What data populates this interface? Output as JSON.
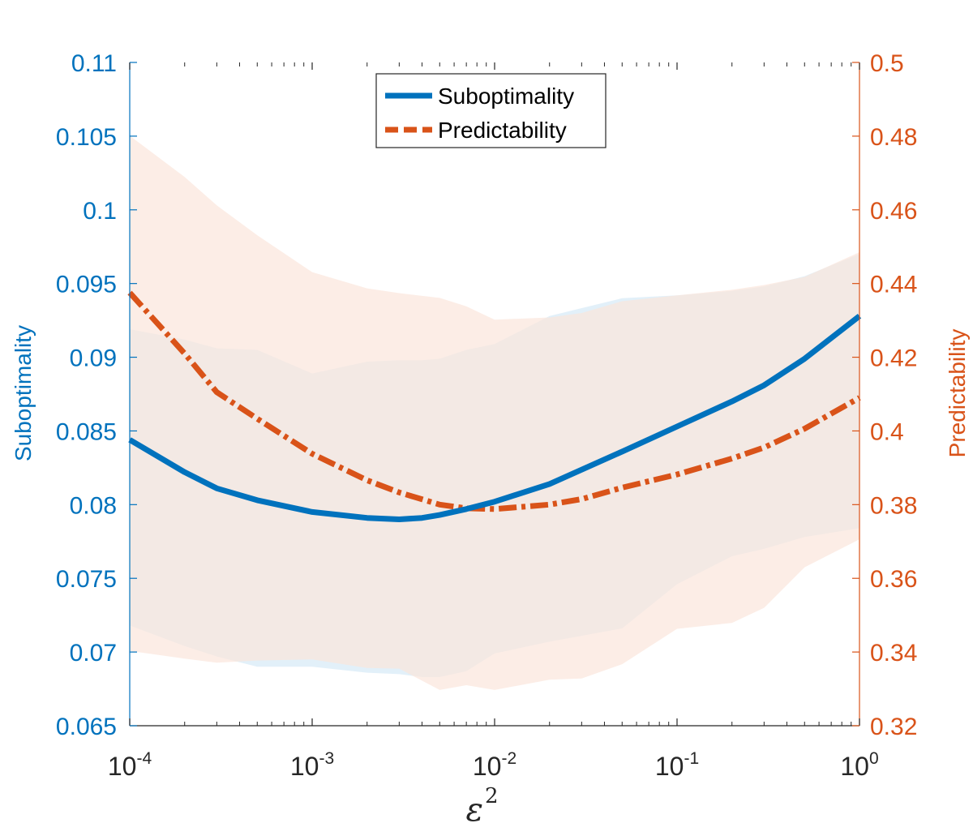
{
  "chart_data": {
    "type": "line",
    "title": "",
    "xlabel": "ε",
    "xlabel_superscript": "2",
    "xscale": "log",
    "xlim": [
      0.0001,
      1
    ],
    "x_ticks": [
      {
        "value": 0.0001,
        "base": "10",
        "exp": "-4"
      },
      {
        "value": 0.001,
        "base": "10",
        "exp": "-3"
      },
      {
        "value": 0.01,
        "base": "10",
        "exp": "-2"
      },
      {
        "value": 0.1,
        "base": "10",
        "exp": "-1"
      },
      {
        "value": 1,
        "base": "10",
        "exp": "0"
      }
    ],
    "y_left": {
      "label": "Suboptimality",
      "color": "#0072BD",
      "lim": [
        0.065,
        0.11
      ],
      "ticks": [
        0.065,
        0.07,
        0.075,
        0.08,
        0.085,
        0.09,
        0.095,
        0.1,
        0.105,
        0.11
      ],
      "tick_labels": [
        "0.065",
        "0.07",
        "0.075",
        "0.08",
        "0.085",
        "0.09",
        "0.095",
        "0.1",
        "0.105",
        "0.11"
      ]
    },
    "y_right": {
      "label": "Predictability",
      "color": "#D95319",
      "lim": [
        0.32,
        0.5
      ],
      "ticks": [
        0.32,
        0.34,
        0.36,
        0.38,
        0.4,
        0.42,
        0.44,
        0.46,
        0.48,
        0.5
      ],
      "tick_labels": [
        "0.32",
        "0.34",
        "0.36",
        "0.38",
        "0.4",
        "0.42",
        "0.44",
        "0.46",
        "0.48",
        "0.5"
      ]
    },
    "grid": false,
    "legend_placement": "top-center",
    "series": [
      {
        "name": "Suboptimality",
        "axis": "left",
        "style": "solid",
        "color": "#0072BD",
        "x": [
          0.0001,
          0.0002,
          0.0003,
          0.0005,
          0.001,
          0.002,
          0.003,
          0.004,
          0.005,
          0.007,
          0.01,
          0.02,
          0.05,
          0.1,
          0.2,
          0.3,
          0.5,
          1
        ],
        "y": [
          0.0844,
          0.0822,
          0.0811,
          0.0803,
          0.0795,
          0.0791,
          0.079,
          0.0791,
          0.0793,
          0.0797,
          0.0802,
          0.0814,
          0.0836,
          0.0853,
          0.087,
          0.0881,
          0.0899,
          0.0928
        ],
        "band_upper": [
          0.0919,
          0.0912,
          0.0906,
          0.0905,
          0.0889,
          0.0897,
          0.0898,
          0.0898,
          0.0899,
          0.0905,
          0.0909,
          0.0928,
          0.094,
          0.0942,
          0.0945,
          0.0948,
          0.0955,
          0.097
        ],
        "band_lower": [
          0.0718,
          0.0704,
          0.0697,
          0.069,
          0.069,
          0.0686,
          0.0685,
          0.0683,
          0.0683,
          0.0687,
          0.0699,
          0.0707,
          0.0716,
          0.0746,
          0.0765,
          0.077,
          0.0778,
          0.0784
        ],
        "band_color": "#d6e9f7"
      },
      {
        "name": "Predictability",
        "axis": "right",
        "style": "dash-dot",
        "color": "#D95319",
        "x": [
          0.0001,
          0.0002,
          0.0003,
          0.0005,
          0.001,
          0.002,
          0.003,
          0.005,
          0.007,
          0.01,
          0.02,
          0.03,
          0.05,
          0.1,
          0.2,
          0.3,
          0.5,
          1
        ],
        "y": [
          0.4375,
          0.421,
          0.4105,
          0.4033,
          0.3938,
          0.3866,
          0.3833,
          0.38,
          0.379,
          0.3788,
          0.38,
          0.3815,
          0.3846,
          0.3882,
          0.3925,
          0.3955,
          0.4006,
          0.409
        ],
        "band_upper": [
          0.4801,
          0.4689,
          0.4612,
          0.4531,
          0.4431,
          0.4387,
          0.4374,
          0.4361,
          0.4338,
          0.4302,
          0.4308,
          0.432,
          0.4352,
          0.4368,
          0.4383,
          0.4396,
          0.4418,
          0.4485
        ],
        "band_lower": [
          0.3403,
          0.3382,
          0.3371,
          0.3377,
          0.338,
          0.3357,
          0.3355,
          0.3297,
          0.331,
          0.3297,
          0.3325,
          0.3328,
          0.3367,
          0.3463,
          0.3479,
          0.352,
          0.363,
          0.3706
        ],
        "band_color": "#fbe5dc"
      }
    ]
  }
}
